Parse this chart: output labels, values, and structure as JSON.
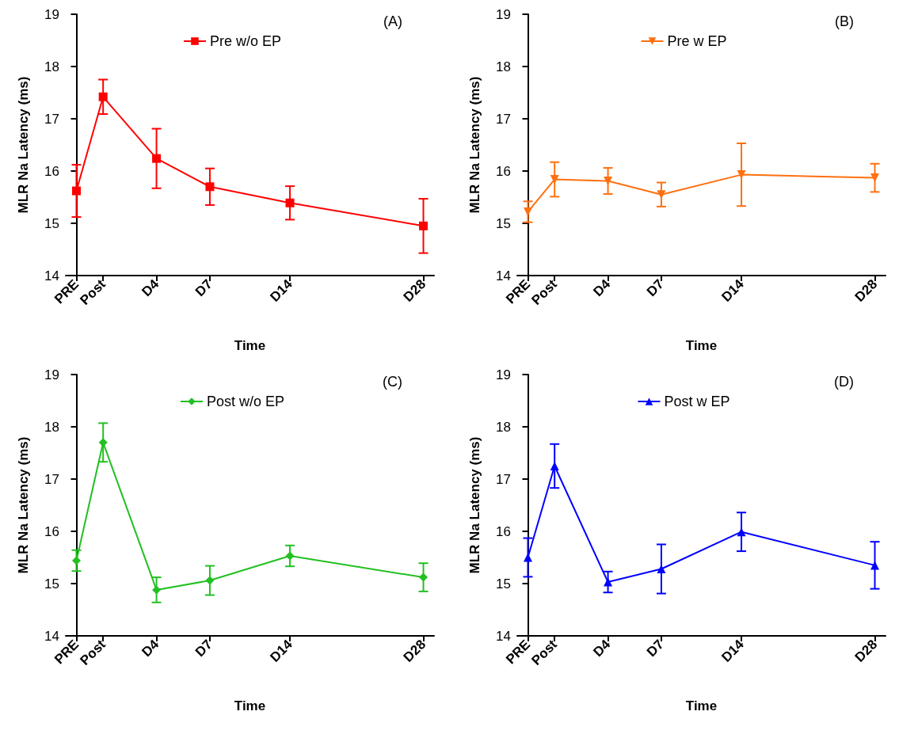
{
  "chart_data": [
    {
      "type": "line",
      "xlabel": "Time",
      "ylabel": "MLR Na Latency (ms)",
      "annotations": [
        "(A)"
      ],
      "categories": [
        "PRE",
        "Post",
        null,
        "D4",
        null,
        "D7",
        null,
        null,
        "D14",
        null,
        null,
        null,
        null,
        "D28"
      ],
      "ylim": [
        14,
        19
      ],
      "yticks": [
        14,
        15,
        16,
        17,
        18,
        19
      ],
      "grid": false,
      "legend": "top",
      "marker": "square",
      "line_style": "solid",
      "series": [
        {
          "name": "Pre w/o EP",
          "color": "#ff0000",
          "values": [
            15.62,
            17.42,
            null,
            16.24,
            null,
            15.7,
            null,
            null,
            15.39,
            null,
            null,
            null,
            null,
            14.95
          ],
          "errors": [
            0.5,
            0.33,
            null,
            0.57,
            null,
            0.35,
            null,
            null,
            0.32,
            null,
            null,
            null,
            null,
            0.52
          ]
        }
      ]
    },
    {
      "type": "line",
      "xlabel": "Time",
      "ylabel": "MLR Na Latency (ms)",
      "annotations": [
        "(B)"
      ],
      "categories": [
        "PRE",
        "Post",
        null,
        "D4",
        null,
        "D7",
        null,
        null,
        "D14",
        null,
        null,
        null,
        null,
        "D28"
      ],
      "ylim": [
        14,
        19
      ],
      "yticks": [
        14,
        15,
        16,
        17,
        18,
        19
      ],
      "grid": false,
      "legend": "top",
      "marker": "triangle-down",
      "line_style": "solid",
      "series": [
        {
          "name": "Pre w EP",
          "color": "#ff7010",
          "values": [
            15.22,
            15.84,
            null,
            15.81,
            null,
            15.55,
            null,
            null,
            15.93,
            null,
            null,
            null,
            null,
            15.87
          ],
          "errors": [
            0.2,
            0.33,
            null,
            0.25,
            null,
            0.23,
            null,
            null,
            0.6,
            null,
            null,
            null,
            null,
            0.27
          ]
        }
      ]
    },
    {
      "type": "line",
      "xlabel": "Time",
      "ylabel": "MLR Na Latency (ms)",
      "annotations": [
        "(C)"
      ],
      "categories": [
        "PRE",
        "Post",
        null,
        "D4",
        null,
        "D7",
        null,
        null,
        "D14",
        null,
        null,
        null,
        null,
        "D28"
      ],
      "ylim": [
        14,
        19
      ],
      "yticks": [
        14,
        15,
        16,
        17,
        18,
        19
      ],
      "grid": false,
      "legend": "top",
      "marker": "diamond",
      "line_style": "solid",
      "series": [
        {
          "name": "Post w/o EP",
          "color": "#22c022",
          "values": [
            15.44,
            17.7,
            null,
            14.88,
            null,
            15.06,
            null,
            null,
            15.53,
            null,
            null,
            null,
            null,
            15.12
          ],
          "errors": [
            0.2,
            0.37,
            null,
            0.24,
            null,
            0.28,
            null,
            null,
            0.2,
            null,
            null,
            null,
            null,
            0.27
          ]
        }
      ]
    },
    {
      "type": "line",
      "xlabel": "Time",
      "ylabel": "MLR Na Latency (ms)",
      "annotations": [
        "(D)"
      ],
      "categories": [
        "PRE",
        "Post",
        null,
        "D4",
        null,
        "D7",
        null,
        null,
        "D14",
        null,
        null,
        null,
        null,
        "D28"
      ],
      "ylim": [
        14,
        19
      ],
      "yticks": [
        14,
        15,
        16,
        17,
        18,
        19
      ],
      "grid": false,
      "legend": "top",
      "marker": "triangle",
      "line_style": "solid",
      "series": [
        {
          "name": "Post w EP",
          "color": "#0000ff",
          "values": [
            15.5,
            17.25,
            null,
            15.03,
            null,
            15.28,
            null,
            null,
            15.99,
            null,
            null,
            null,
            null,
            15.35
          ],
          "errors": [
            0.37,
            0.42,
            null,
            0.2,
            null,
            0.47,
            null,
            null,
            0.37,
            null,
            null,
            null,
            null,
            0.45
          ]
        }
      ]
    }
  ]
}
